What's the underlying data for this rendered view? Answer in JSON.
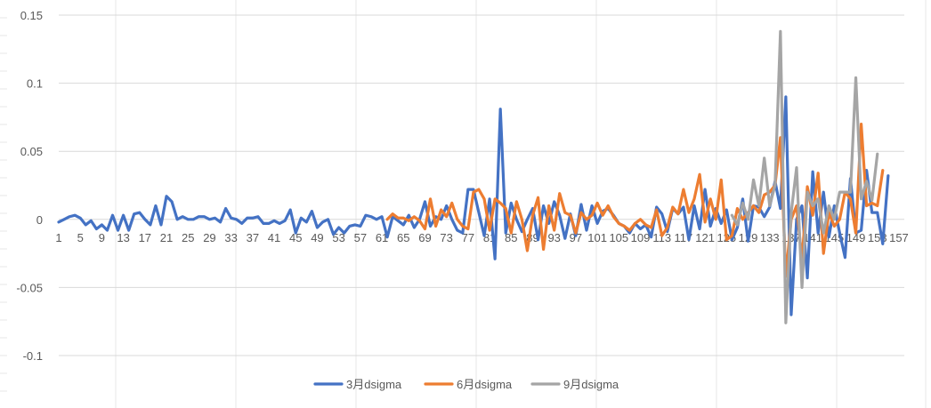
{
  "chart_data": {
    "type": "line",
    "title": "",
    "xlabel": "",
    "ylabel": "",
    "ylim": [
      -0.1,
      0.15
    ],
    "yticks": [
      -0.1,
      -0.05,
      0,
      0.05,
      0.1,
      0.15
    ],
    "ytick_labels": [
      "-0.1",
      "-0.05",
      "0",
      "0.05",
      "0.1",
      "0.15"
    ],
    "x_count": 158,
    "xtick_labels": [
      "1",
      "5",
      "9",
      "13",
      "17",
      "21",
      "25",
      "29",
      "33",
      "37",
      "41",
      "45",
      "49",
      "53",
      "57",
      "61",
      "65",
      "69",
      "73",
      "77",
      "81",
      "85",
      "89",
      "93",
      "97",
      "101",
      "105",
      "109",
      "113",
      "117",
      "121",
      "125",
      "129",
      "133",
      "137",
      "141",
      "145",
      "149",
      "153",
      "157"
    ],
    "grid": true,
    "legend_position": "bottom",
    "series": [
      {
        "name": "3月dsigma",
        "color": "#4472C4",
        "start": 1,
        "values": [
          -0.002,
          0,
          0.002,
          0.003,
          0.001,
          -0.004,
          -0.001,
          -0.007,
          -0.004,
          -0.008,
          0.003,
          -0.008,
          0.003,
          -0.008,
          0.004,
          0.005,
          0.0,
          -0.004,
          0.01,
          -0.004,
          0.017,
          0.013,
          0.0,
          0.002,
          0.0,
          0.0,
          0.002,
          0.002,
          0.0,
          0.001,
          -0.002,
          0.008,
          0.001,
          0.0,
          -0.003,
          0.001,
          0.001,
          0.002,
          -0.003,
          -0.003,
          -0.001,
          -0.003,
          -0.001,
          0.007,
          -0.01,
          0.001,
          -0.002,
          0.006,
          -0.006,
          -0.002,
          0.0,
          -0.011,
          -0.006,
          -0.01,
          -0.005,
          -0.004,
          -0.005,
          0.003,
          0.002,
          0.0,
          0.002,
          -0.013,
          0.002,
          -0.001,
          -0.004,
          0.003,
          -0.006,
          0.0,
          0.013,
          -0.005,
          0.002,
          0.0,
          0.01,
          0.0,
          -0.008,
          -0.01,
          0.022,
          0.022,
          0.005,
          -0.012,
          0.015,
          -0.029,
          0.081,
          -0.01,
          0.012,
          0.0,
          -0.009,
          0.0,
          0.008,
          -0.015,
          0.01,
          -0.003,
          0.013,
          0.003,
          -0.014,
          0.004,
          -0.012,
          0.011,
          -0.008,
          0.01,
          -0.003,
          0.006,
          0.008,
          0.003,
          -0.003,
          -0.005,
          -0.01,
          -0.003,
          -0.007,
          -0.004,
          -0.013,
          0.009,
          0.004,
          -0.009,
          0.008,
          0.004,
          0.009,
          -0.015,
          0.01,
          -0.007,
          0.022,
          -0.005,
          0.008,
          -0.003,
          0.007,
          -0.015,
          -0.006,
          0.015,
          -0.016,
          0.01,
          0.009,
          0.002,
          0.009,
          0.028,
          0.008,
          0.09,
          -0.07,
          0.0,
          0.01,
          -0.043,
          0.035,
          -0.01,
          0.02,
          -0.013,
          0.01,
          -0.01,
          -0.028,
          0.03,
          -0.01,
          -0.008,
          0.036,
          0.005,
          0.005,
          -0.018,
          0.032
        ]
      },
      {
        "name": "6月dsigma",
        "color": "#ED7D31",
        "start": 62,
        "values": [
          0.0,
          0.004,
          0.001,
          0.001,
          -0.001,
          0.002,
          -0.001,
          -0.007,
          0.015,
          -0.005,
          0.007,
          0.002,
          0.012,
          0.0,
          -0.005,
          -0.007,
          0.02,
          0.022,
          0.015,
          -0.008,
          0.015,
          0.012,
          0.008,
          -0.01,
          0.013,
          0.0,
          -0.023,
          0.003,
          0.016,
          -0.022,
          0.01,
          -0.008,
          0.019,
          0.005,
          0.003,
          -0.01,
          0.005,
          0.0,
          0.003,
          0.012,
          0.003,
          0.01,
          0.002,
          -0.003,
          -0.005,
          -0.008,
          -0.003,
          0.0,
          -0.004,
          -0.006,
          0.007,
          -0.012,
          -0.006,
          0.009,
          0.004,
          0.022,
          0.005,
          0.015,
          0.033,
          -0.002,
          0.015,
          0.0,
          0.029,
          -0.015,
          -0.012,
          0.008,
          0.0,
          0.005,
          0.01,
          0.005,
          0.018,
          0.02,
          0.025,
          0.06,
          -0.042,
          0.0,
          0.01,
          -0.03,
          0.024,
          0.003,
          0.034,
          -0.025,
          0.005,
          -0.005,
          0.0,
          0.02,
          0.015,
          -0.01,
          0.07,
          0.01,
          0.012,
          0.01,
          0.036
        ]
      },
      {
        "name": "9月dsigma",
        "color": "#A5A5A5",
        "start": 126,
        "values": [
          0.003,
          -0.004,
          0.012,
          0.0,
          0.029,
          0.01,
          0.045,
          0.01,
          0.025,
          0.138,
          -0.076,
          0.005,
          0.038,
          -0.05,
          0.02,
          0.01,
          0.015,
          -0.01,
          0.01,
          0.0,
          0.02,
          0.02,
          0.02,
          0.104,
          0.015,
          0.028,
          0.014,
          0.048
        ]
      }
    ]
  }
}
